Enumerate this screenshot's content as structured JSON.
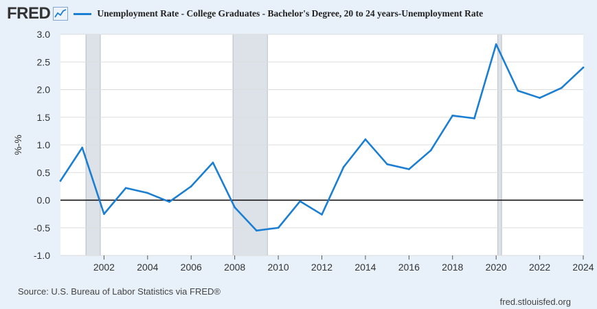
{
  "header": {
    "logo_text": "FRED",
    "logo_icon": "line-chart-icon"
  },
  "colors": {
    "series": "#1a7ed3",
    "recession": "#dde2e8",
    "zero_line": "#000000",
    "grid": "#dddddd",
    "background": "#e8f0f9",
    "plot_background": "#ffffff"
  },
  "chart_data": {
    "type": "line",
    "title": "",
    "xlabel": "",
    "ylabel": "%-%",
    "xlim": [
      2000,
      2024
    ],
    "ylim": [
      -1.0,
      3.0
    ],
    "grid": "horizontal",
    "yticks": [
      "3.0",
      "2.5",
      "2.0",
      "1.5",
      "1.0",
      "0.5",
      "0.0",
      "-0.5",
      "-1.0"
    ],
    "xticks": [
      "2002",
      "2004",
      "2006",
      "2008",
      "2010",
      "2012",
      "2014",
      "2016",
      "2018",
      "2020",
      "2022",
      "2024"
    ],
    "recessions": [
      [
        2001.17,
        2001.83
      ],
      [
        2007.92,
        2009.5
      ],
      [
        2020.08,
        2020.25
      ]
    ],
    "series": [
      {
        "name": "Unemployment Rate - College Graduates - Bachelor's Degree, 20 to 24 years-Unemployment Rate",
        "x": [
          2000,
          2001,
          2002,
          2003,
          2004,
          2005,
          2006,
          2007,
          2008,
          2009,
          2010,
          2011,
          2012,
          2013,
          2014,
          2015,
          2016,
          2017,
          2018,
          2019,
          2020,
          2021,
          2022,
          2023,
          2024
        ],
        "y": [
          0.35,
          0.95,
          -0.25,
          0.22,
          0.13,
          -0.03,
          0.25,
          0.68,
          -0.13,
          -0.55,
          -0.5,
          -0.02,
          -0.26,
          0.6,
          1.1,
          0.65,
          0.56,
          0.9,
          1.53,
          1.48,
          2.82,
          1.98,
          1.85,
          2.03,
          2.4
        ]
      }
    ]
  },
  "footer": {
    "source": "Source: U.S. Bureau of Labor Statistics via FRED®",
    "site": "fred.stlouisfed.org"
  }
}
